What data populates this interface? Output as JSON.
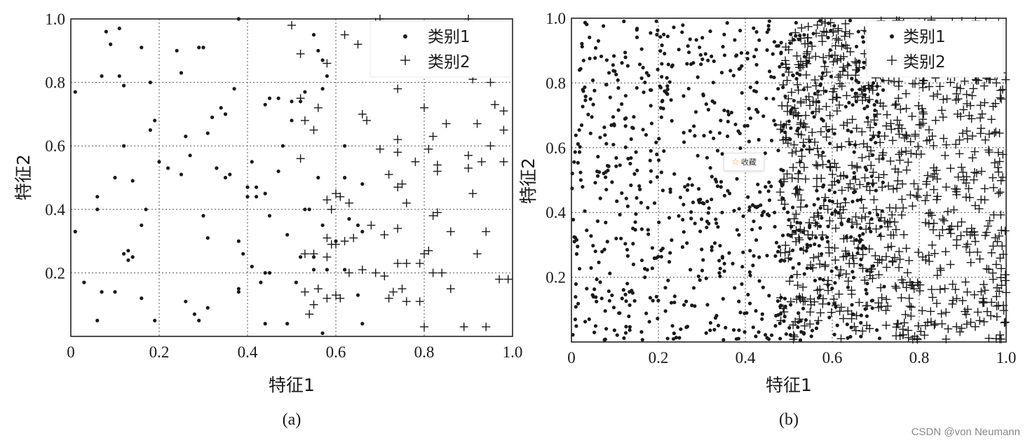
{
  "chart_data": [
    {
      "type": "scatter",
      "panel_label": "(a)",
      "xlabel": "特征1",
      "ylabel": "特征2",
      "xlim": [
        0,
        1.0
      ],
      "ylim": [
        0,
        1.0
      ],
      "x_ticks": [
        "0",
        "0.2",
        "0.4",
        "0.6",
        "0.8",
        "1.0"
      ],
      "y_ticks": [
        "0.2",
        "0.4",
        "0.6",
        "0.8",
        "1.0"
      ],
      "grid": true,
      "legend_placement": "top-right",
      "series": [
        {
          "name": "类别1",
          "marker": "dot",
          "points": [
            [
              0.01,
              0.77
            ],
            [
              0.08,
              0.96
            ],
            [
              0.09,
              0.92
            ],
            [
              0.11,
              0.97
            ],
            [
              0.16,
              0.91
            ],
            [
              0.07,
              0.82
            ],
            [
              0.11,
              0.82
            ],
            [
              0.12,
              0.79
            ],
            [
              0.18,
              0.8
            ],
            [
              0.24,
              0.9
            ],
            [
              0.25,
              0.83
            ],
            [
              0.29,
              0.91
            ],
            [
              0.3,
              0.91
            ],
            [
              0.38,
              1.0
            ],
            [
              0.37,
              0.78
            ],
            [
              0.44,
              0.73
            ],
            [
              0.45,
              0.75
            ],
            [
              0.47,
              0.75
            ],
            [
              0.5,
              0.74
            ],
            [
              0.52,
              0.74
            ],
            [
              0.53,
              0.77
            ],
            [
              0.57,
              0.78
            ],
            [
              0.58,
              0.82
            ],
            [
              0.57,
              0.87
            ],
            [
              0.56,
              0.9
            ],
            [
              0.55,
              0.95
            ],
            [
              0.18,
              0.65
            ],
            [
              0.19,
              0.68
            ],
            [
              0.12,
              0.6
            ],
            [
              0.2,
              0.55
            ],
            [
              0.22,
              0.53
            ],
            [
              0.25,
              0.51
            ],
            [
              0.27,
              0.57
            ],
            [
              0.26,
              0.63
            ],
            [
              0.31,
              0.64
            ],
            [
              0.32,
              0.69
            ],
            [
              0.34,
              0.72
            ],
            [
              0.35,
              0.7
            ],
            [
              0.33,
              0.53
            ],
            [
              0.35,
              0.5
            ],
            [
              0.36,
              0.51
            ],
            [
              0.4,
              0.47
            ],
            [
              0.42,
              0.47
            ],
            [
              0.44,
              0.45
            ],
            [
              0.41,
              0.55
            ],
            [
              0.47,
              0.52
            ],
            [
              0.48,
              0.6
            ],
            [
              0.5,
              0.68
            ],
            [
              0.06,
              0.44
            ],
            [
              0.06,
              0.4
            ],
            [
              0.1,
              0.5
            ],
            [
              0.14,
              0.49
            ],
            [
              0.17,
              0.4
            ],
            [
              0.16,
              0.35
            ],
            [
              0.12,
              0.26
            ],
            [
              0.13,
              0.27
            ],
            [
              0.14,
              0.25
            ],
            [
              0.13,
              0.24
            ],
            [
              0.01,
              0.33
            ],
            [
              0.3,
              0.38
            ],
            [
              0.31,
              0.31
            ],
            [
              0.38,
              0.3
            ],
            [
              0.39,
              0.26
            ],
            [
              0.41,
              0.22
            ],
            [
              0.45,
              0.38
            ],
            [
              0.49,
              0.32
            ],
            [
              0.53,
              0.4
            ],
            [
              0.54,
              0.4
            ],
            [
              0.57,
              0.35
            ],
            [
              0.6,
              0.3
            ],
            [
              0.63,
              0.37
            ],
            [
              0.65,
              0.35
            ],
            [
              0.66,
              0.33
            ],
            [
              0.03,
              0.17
            ],
            [
              0.06,
              0.05
            ],
            [
              0.07,
              0.14
            ],
            [
              0.1,
              0.14
            ],
            [
              0.16,
              0.12
            ],
            [
              0.19,
              0.05
            ],
            [
              0.26,
              0.11
            ],
            [
              0.28,
              0.07
            ],
            [
              0.29,
              0.05
            ],
            [
              0.31,
              0.09
            ],
            [
              0.38,
              0.14
            ],
            [
              0.38,
              0.15
            ],
            [
              0.43,
              0.17
            ],
            [
              0.44,
              0.2
            ],
            [
              0.45,
              0.2
            ],
            [
              0.44,
              0.04
            ],
            [
              0.49,
              0.04
            ],
            [
              0.51,
              0.17
            ],
            [
              0.52,
              0.25
            ],
            [
              0.55,
              0.25
            ],
            [
              0.58,
              0.21
            ],
            [
              0.55,
              0.21
            ],
            [
              0.57,
              0.01
            ],
            [
              0.62,
              0.21
            ],
            [
              0.65,
              0.13
            ],
            [
              0.66,
              0.04
            ],
            [
              0.62,
              0.5
            ],
            [
              0.66,
              0.48
            ],
            [
              0.62,
              0.6
            ],
            [
              0.56,
              0.5
            ],
            [
              0.4,
              0.44
            ],
            [
              0.42,
              0.44
            ]
          ]
        },
        {
          "name": "类别2",
          "marker": "plus",
          "points": [
            [
              0.5,
              0.98
            ],
            [
              0.52,
              0.89
            ],
            [
              0.58,
              0.86
            ],
            [
              0.62,
              0.95
            ],
            [
              0.65,
              0.92
            ],
            [
              0.69,
              0.99
            ],
            [
              0.7,
              1.0
            ],
            [
              0.72,
              0.83
            ],
            [
              0.74,
              0.78
            ],
            [
              0.9,
              1.0
            ],
            [
              0.91,
              0.81
            ],
            [
              0.92,
              0.95
            ],
            [
              0.95,
              0.8
            ],
            [
              0.97,
              0.92
            ],
            [
              0.96,
              0.73
            ],
            [
              0.98,
              0.71
            ],
            [
              0.52,
              0.75
            ],
            [
              0.53,
              0.68
            ],
            [
              0.55,
              0.65
            ],
            [
              0.56,
              0.72
            ],
            [
              0.66,
              0.7
            ],
            [
              0.67,
              0.68
            ],
            [
              0.7,
              0.59
            ],
            [
              0.74,
              0.62
            ],
            [
              0.74,
              0.58
            ],
            [
              0.8,
              0.72
            ],
            [
              0.82,
              0.63
            ],
            [
              0.85,
              0.67
            ],
            [
              0.9,
              0.57
            ],
            [
              0.92,
              0.67
            ],
            [
              0.93,
              0.55
            ],
            [
              0.95,
              0.6
            ],
            [
              0.98,
              0.65
            ],
            [
              0.98,
              0.55
            ],
            [
              0.52,
              0.56
            ],
            [
              0.58,
              0.43
            ],
            [
              0.59,
              0.4
            ],
            [
              0.6,
              0.45
            ],
            [
              0.61,
              0.44
            ],
            [
              0.63,
              0.42
            ],
            [
              0.72,
              0.51
            ],
            [
              0.74,
              0.47
            ],
            [
              0.75,
              0.48
            ],
            [
              0.76,
              0.42
            ],
            [
              0.78,
              0.55
            ],
            [
              0.81,
              0.59
            ],
            [
              0.83,
              0.54
            ],
            [
              0.83,
              0.52
            ],
            [
              0.82,
              0.38
            ],
            [
              0.83,
              0.39
            ],
            [
              0.9,
              0.53
            ],
            [
              0.91,
              0.45
            ],
            [
              0.58,
              0.31
            ],
            [
              0.59,
              0.29
            ],
            [
              0.6,
              0.29
            ],
            [
              0.62,
              0.3
            ],
            [
              0.64,
              0.31
            ],
            [
              0.68,
              0.35
            ],
            [
              0.71,
              0.32
            ],
            [
              0.74,
              0.34
            ],
            [
              0.8,
              0.26
            ],
            [
              0.81,
              0.27
            ],
            [
              0.86,
              0.33
            ],
            [
              0.94,
              0.33
            ],
            [
              0.92,
              0.26
            ],
            [
              0.53,
              0.26
            ],
            [
              0.55,
              0.26
            ],
            [
              0.58,
              0.25
            ],
            [
              0.6,
              0.13
            ],
            [
              0.61,
              0.12
            ],
            [
              0.63,
              0.2
            ],
            [
              0.66,
              0.21
            ],
            [
              0.69,
              0.2
            ],
            [
              0.71,
              0.19
            ],
            [
              0.72,
              0.12
            ],
            [
              0.73,
              0.14
            ],
            [
              0.74,
              0.23
            ],
            [
              0.76,
              0.23
            ],
            [
              0.75,
              0.15
            ],
            [
              0.76,
              0.11
            ],
            [
              0.79,
              0.23
            ],
            [
              0.79,
              0.11
            ],
            [
              0.8,
              0.03
            ],
            [
              0.82,
              0.2
            ],
            [
              0.86,
              0.15
            ],
            [
              0.89,
              0.03
            ],
            [
              0.94,
              0.03
            ],
            [
              0.97,
              0.18
            ],
            [
              0.99,
              0.18
            ],
            [
              0.53,
              0.14
            ],
            [
              0.55,
              0.1
            ],
            [
              0.56,
              0.15
            ],
            [
              0.58,
              0.12
            ],
            [
              0.54,
              0.07
            ],
            [
              0.84,
              0.2
            ]
          ]
        }
      ]
    },
    {
      "type": "scatter",
      "panel_label": "(b)",
      "xlabel": "特征1",
      "ylabel": "特征2",
      "xlim": [
        0,
        1.0
      ],
      "ylim": [
        0,
        1.0
      ],
      "x_ticks": [
        "0",
        "0.2",
        "0.4",
        "0.6",
        "0.8",
        "1.0"
      ],
      "y_ticks": [
        "0.2",
        "0.4",
        "0.6",
        "0.8",
        "1.0"
      ],
      "grid": true,
      "legend_placement": "top-right",
      "distribution_note": "dense uniform scatter; 类别1 mostly at 特征1 < 0.55, 类别2 mostly at 特征1 > 0.5, heavy overlap in 0.45–0.7",
      "series": [
        {
          "name": "类别1",
          "marker": "dot",
          "x_range": [
            0,
            0.72
          ],
          "count": 900
        },
        {
          "name": "类别2",
          "marker": "plus",
          "x_range": [
            0.48,
            1.0
          ],
          "count": 900
        }
      ]
    }
  ],
  "overlay": {
    "favorite_label": "收藏",
    "favorite_icon": "star-icon"
  },
  "watermark": "CSDN @von  Neumann"
}
